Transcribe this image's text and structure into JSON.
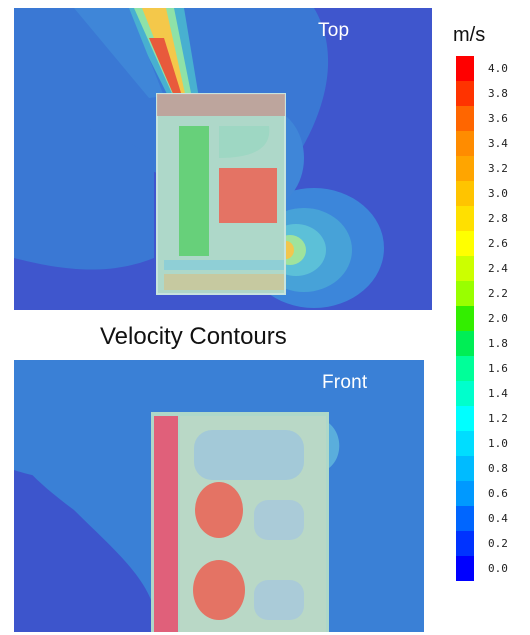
{
  "labels": {
    "top": "Top",
    "front": "Front",
    "caption": "Velocity Contours"
  },
  "colorbar": {
    "unit": "m/s",
    "min": 0.0,
    "max": 4.0,
    "ticks": [
      "4.0",
      "3.8",
      "3.6",
      "3.4",
      "3.2",
      "3.0",
      "2.8",
      "2.6",
      "2.4",
      "2.2",
      "2.0",
      "1.8",
      "1.6",
      "1.4",
      "1.2",
      "1.0",
      "0.8",
      "0.6",
      "0.4",
      "0.2",
      "0.0"
    ],
    "colors": [
      "#ff0000",
      "#ff3300",
      "#ff6600",
      "#ff8c00",
      "#ffa500",
      "#ffc400",
      "#ffe000",
      "#ffff00",
      "#ccff00",
      "#99ff00",
      "#33ee00",
      "#00ee55",
      "#00ff99",
      "#00ffcc",
      "#00ffff",
      "#00ddff",
      "#00bbff",
      "#0099ff",
      "#0066ff",
      "#0033ff",
      "#0000ff"
    ]
  },
  "colors": {
    "background_flow": "#3e5fcf",
    "outer_contour": "#3a80d6",
    "mid_contour": "#5aaedc",
    "cabinet_shell": "#aed8c9",
    "green_zone": "#67d07a",
    "hot_zone": "#e47364",
    "pink_zone": "#e0607a"
  }
}
